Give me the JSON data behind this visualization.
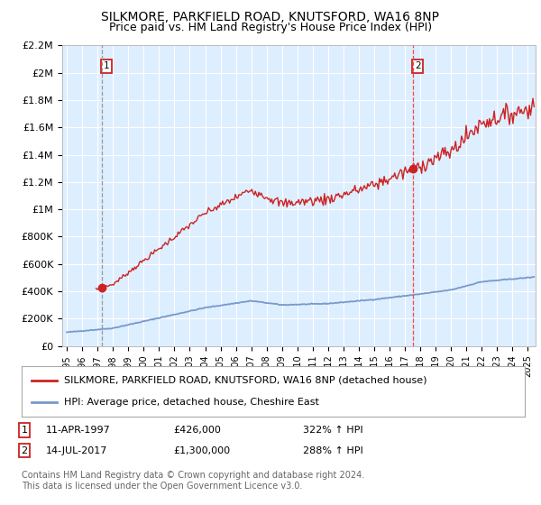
{
  "title": "SILKMORE, PARKFIELD ROAD, KNUTSFORD, WA16 8NP",
  "subtitle": "Price paid vs. HM Land Registry's House Price Index (HPI)",
  "ylim": [
    0,
    2200000
  ],
  "yticks": [
    0,
    200000,
    400000,
    600000,
    800000,
    1000000,
    1200000,
    1400000,
    1600000,
    1800000,
    2000000,
    2200000
  ],
  "ytick_labels": [
    "£0",
    "£200K",
    "£400K",
    "£600K",
    "£800K",
    "£1M",
    "£1.2M",
    "£1.4M",
    "£1.6M",
    "£1.8M",
    "£2M",
    "£2.2M"
  ],
  "xlim_start": 1994.7,
  "xlim_end": 2025.5,
  "xticks": [
    1995,
    1996,
    1997,
    1998,
    1999,
    2000,
    2001,
    2002,
    2003,
    2004,
    2005,
    2006,
    2007,
    2008,
    2009,
    2010,
    2011,
    2012,
    2013,
    2014,
    2015,
    2016,
    2017,
    2018,
    2019,
    2020,
    2021,
    2022,
    2023,
    2024,
    2025
  ],
  "sale1_x": 1997.28,
  "sale1_y": 426000,
  "sale1_label": "1",
  "sale1_date": "11-APR-1997",
  "sale1_price": "£426,000",
  "sale1_hpi": "322% ↑ HPI",
  "sale2_x": 2017.54,
  "sale2_y": 1300000,
  "sale2_label": "2",
  "sale2_date": "14-JUL-2017",
  "sale2_price": "£1,300,000",
  "sale2_hpi": "288% ↑ HPI",
  "legend_line1": "SILKMORE, PARKFIELD ROAD, KNUTSFORD, WA16 8NP (detached house)",
  "legend_line2": "HPI: Average price, detached house, Cheshire East",
  "footnote": "Contains HM Land Registry data © Crown copyright and database right 2024.\nThis data is licensed under the Open Government Licence v3.0.",
  "plot_bg_color": "#ddeeff",
  "fig_bg_color": "#ffffff",
  "grid_color": "#ffffff",
  "red_line_color": "#cc2222",
  "blue_line_color": "#7799cc",
  "sale1_vline_color": "#999999",
  "sale2_vline_color": "#ff4444",
  "sale_dot_color": "#cc2222",
  "title_fontsize": 10,
  "subtitle_fontsize": 9,
  "axis_fontsize": 8,
  "legend_fontsize": 8,
  "footnote_fontsize": 7
}
